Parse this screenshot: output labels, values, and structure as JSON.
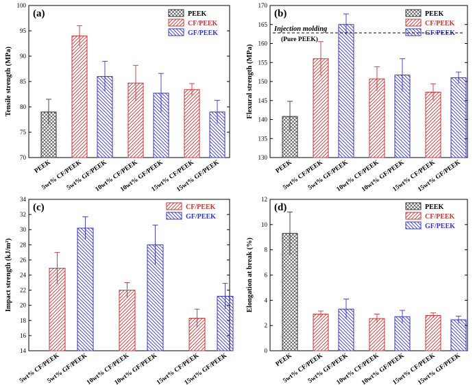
{
  "colors": {
    "PEEK": "#333333",
    "CF/PEEK": "#cc3333",
    "GF/PEEK": "#3333cc"
  },
  "chart_data": [
    {
      "type": "bar",
      "panel_label": "(a)",
      "ylabel": "Tensile strength (MPa)",
      "ylim": [
        70,
        100
      ],
      "yticks": [
        70,
        75,
        80,
        85,
        90,
        95,
        100
      ],
      "legend": [
        "PEEK",
        "CF/PEEK",
        "GF/PEEK"
      ],
      "legend_position": "top-right",
      "bars": [
        {
          "category": "PEEK",
          "series": "PEEK",
          "value": 79.0,
          "error": 2.5
        },
        {
          "category": "5wt% CF/PEEK",
          "series": "CF/PEEK",
          "value": 94.0,
          "error": 2.0
        },
        {
          "category": "5wt% GF/PEEK",
          "series": "GF/PEEK",
          "value": 86.0,
          "error": 3.0
        },
        {
          "category": "10wt% CF/PEEK",
          "series": "CF/PEEK",
          "value": 84.7,
          "error": 3.5
        },
        {
          "category": "10wt% GF/PEEK",
          "series": "GF/PEEK",
          "value": 82.7,
          "error": 3.9
        },
        {
          "category": "15wt% CF/PEEK",
          "series": "CF/PEEK",
          "value": 83.4,
          "error": 1.2
        },
        {
          "category": "15wt% GF/PEEK",
          "series": "GF/PEEK",
          "value": 79.0,
          "error": 2.3
        }
      ],
      "grid": false
    },
    {
      "type": "bar",
      "panel_label": "(b)",
      "ylabel": "Flexural strength (MPa)",
      "ylim": [
        130,
        170
      ],
      "yticks": [
        130,
        135,
        140,
        145,
        150,
        155,
        160,
        165,
        170
      ],
      "legend": [
        "PEEK",
        "CF/PEEK",
        "GF/PEEK"
      ],
      "legend_position": "top-right",
      "annotation": {
        "text": "Injection molding",
        "subtext": "(Pure PEEK)",
        "reference_value": 162.8
      },
      "bars": [
        {
          "category": "PEEK",
          "series": "PEEK",
          "value": 140.8,
          "error": 4.0
        },
        {
          "category": "5wt% CF/PEEK",
          "series": "CF/PEEK",
          "value": 156.0,
          "error": 4.5
        },
        {
          "category": "5wt% GF/PEEK",
          "series": "GF/PEEK",
          "value": 165.0,
          "error": 2.8
        },
        {
          "category": "10wt% CF/PEEK",
          "series": "CF/PEEK",
          "value": 150.7,
          "error": 3.2
        },
        {
          "category": "10wt% GF/PEEK",
          "series": "GF/PEEK",
          "value": 151.7,
          "error": 4.3
        },
        {
          "category": "15wt% CF/PEEK",
          "series": "CF/PEEK",
          "value": 147.2,
          "error": 2.2
        },
        {
          "category": "15wt% GF/PEEK",
          "series": "GF/PEEK",
          "value": 151.0,
          "error": 1.5
        }
      ],
      "grid": false
    },
    {
      "type": "bar",
      "panel_label": "(c)",
      "ylabel": "Impact strength (kJ/m²)",
      "ylim": [
        14,
        34
      ],
      "yticks": [
        14,
        16,
        18,
        20,
        22,
        24,
        26,
        28,
        30,
        32,
        34
      ],
      "legend": [
        "CF/PEEK",
        "GF/PEEK"
      ],
      "legend_position": "top-right",
      "bars": [
        {
          "category": "5wt% CF/PEEK",
          "series": "CF/PEEK",
          "value": 24.9,
          "error": 2.1
        },
        {
          "category": "5wt% GF/PEEK",
          "series": "GF/PEEK",
          "value": 30.2,
          "error": 1.5
        },
        {
          "category": "10wt% CF/PEEK",
          "series": "CF/PEEK",
          "value": 22.0,
          "error": 1.0
        },
        {
          "category": "10wt% GF/PEEK",
          "series": "GF/PEEK",
          "value": 28.0,
          "error": 2.6
        },
        {
          "category": "15wt% CF/PEEK",
          "series": "CF/PEEK",
          "value": 18.3,
          "error": 1.2
        },
        {
          "category": "15wt% GF/PEEK",
          "series": "GF/PEEK",
          "value": 21.2,
          "error": 1.7
        }
      ],
      "grid": false
    },
    {
      "type": "bar",
      "panel_label": "(d)",
      "ylabel": "Elongation at break (%)",
      "ylim": [
        0,
        12
      ],
      "yticks": [
        0,
        2,
        4,
        6,
        8,
        10,
        12
      ],
      "legend": [
        "PEEK",
        "CF/PEEK",
        "GF/PEEK"
      ],
      "legend_position": "top-right",
      "bars": [
        {
          "category": "PEEK",
          "series": "PEEK",
          "value": 9.3,
          "error": 1.7
        },
        {
          "category": "5wt% CF/PEEK",
          "series": "CF/PEEK",
          "value": 2.9,
          "error": 0.25
        },
        {
          "category": "5wt% GF/PEEK",
          "series": "GF/PEEK",
          "value": 3.3,
          "error": 0.8
        },
        {
          "category": "10wt% CF/PEEK",
          "series": "CF/PEEK",
          "value": 2.55,
          "error": 0.35
        },
        {
          "category": "10wt% GF/PEEK",
          "series": "GF/PEEK",
          "value": 2.7,
          "error": 0.5
        },
        {
          "category": "15wt% CF/PEEK",
          "series": "CF/PEEK",
          "value": 2.8,
          "error": 0.2
        },
        {
          "category": "15wt% GF/PEEK",
          "series": "GF/PEEK",
          "value": 2.45,
          "error": 0.3
        }
      ],
      "grid": false
    }
  ]
}
